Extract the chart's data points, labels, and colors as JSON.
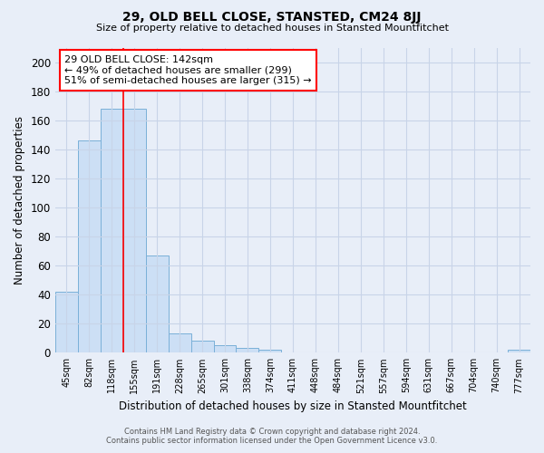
{
  "title1": "29, OLD BELL CLOSE, STANSTED, CM24 8JJ",
  "title2": "Size of property relative to detached houses in Stansted Mountfitchet",
  "xlabel": "Distribution of detached houses by size in Stansted Mountfitchet",
  "ylabel": "Number of detached properties",
  "footer1": "Contains HM Land Registry data © Crown copyright and database right 2024.",
  "footer2": "Contains public sector information licensed under the Open Government Licence v3.0.",
  "bin_labels": [
    "45sqm",
    "82sqm",
    "118sqm",
    "155sqm",
    "191sqm",
    "228sqm",
    "265sqm",
    "301sqm",
    "338sqm",
    "374sqm",
    "411sqm",
    "448sqm",
    "484sqm",
    "521sqm",
    "557sqm",
    "594sqm",
    "631sqm",
    "667sqm",
    "704sqm",
    "740sqm",
    "777sqm"
  ],
  "values": [
    42,
    146,
    168,
    168,
    67,
    13,
    8,
    5,
    3,
    2,
    0,
    0,
    0,
    0,
    0,
    0,
    0,
    0,
    0,
    0,
    2
  ],
  "bar_color": "#ccdff5",
  "bar_edge_color": "#7ab0d8",
  "grid_color": "#c8d4e8",
  "background_color": "#e8eef8",
  "red_line_x": 2.5,
  "annotation_text": "29 OLD BELL CLOSE: 142sqm\n← 49% of detached houses are smaller (299)\n51% of semi-detached houses are larger (315) →",
  "annotation_box_color": "white",
  "annotation_box_edge": "red",
  "ylim": [
    0,
    210
  ],
  "yticks": [
    0,
    20,
    40,
    60,
    80,
    100,
    120,
    140,
    160,
    180,
    200
  ]
}
